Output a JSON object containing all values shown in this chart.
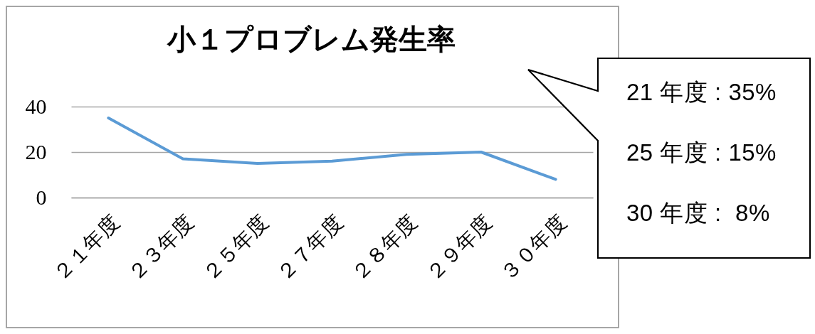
{
  "chart_data": {
    "type": "line",
    "title": "小１プロブレム発生率",
    "categories": [
      "２１年度",
      "２３年度",
      "２５年度",
      "２７年度",
      "２８年度",
      "２９年度",
      "３０年度"
    ],
    "series": [
      {
        "color": "#5b9bd5",
        "values": [
          35,
          17,
          15,
          16,
          19,
          20,
          8
        ]
      }
    ],
    "ylim": [
      0,
      40
    ],
    "yticks": [
      0,
      20,
      40
    ],
    "grid": "y",
    "annotations": [
      "21 年度 : 35%",
      "25 年度 : 15%",
      "30 年度 :  8%"
    ]
  }
}
